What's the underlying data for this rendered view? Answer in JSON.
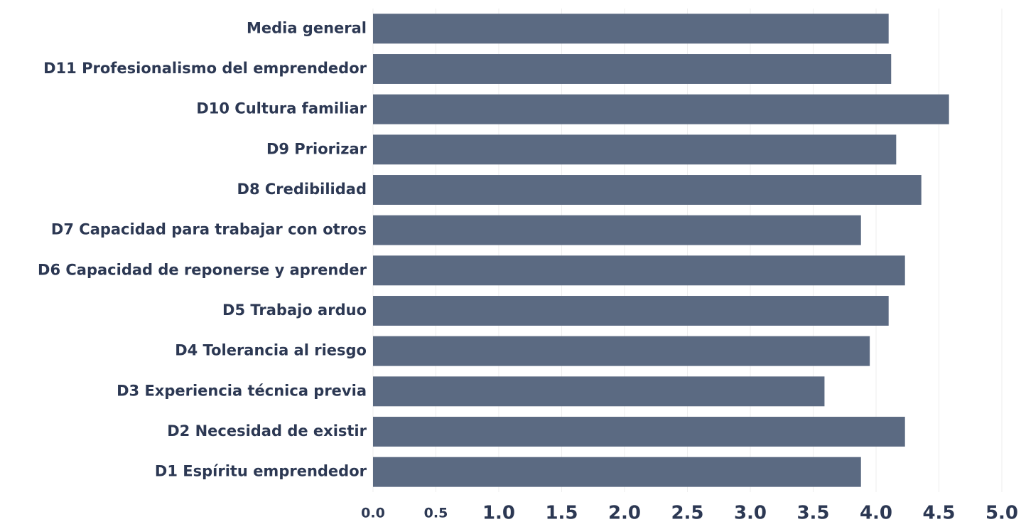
{
  "chart_data": {
    "type": "bar",
    "orientation": "horizontal",
    "categories": [
      "Media general",
      "D11 Profesionalismo del emprendedor",
      "D10 Cultura familiar",
      "D9 Priorizar",
      "D8 Credibilidad",
      "D7 Capacidad para trabajar con otros",
      "D6 Capacidad de reponerse y aprender",
      "D5 Trabajo arduo",
      "D4 Tolerancia al riesgo",
      "D3 Experiencia técnica previa",
      "D2 Necesidad de existir",
      "D1 Espíritu emprendedor"
    ],
    "values": [
      4.1,
      4.12,
      4.58,
      4.16,
      4.36,
      3.88,
      4.23,
      4.1,
      3.95,
      3.59,
      4.23,
      3.88
    ],
    "color": "#5b6a82",
    "xlim": [
      0,
      5
    ],
    "xticks": [
      {
        "value": 0,
        "label": "0.0"
      },
      0.5,
      {
        "value": 1,
        "label": "1.0"
      },
      1.5,
      {
        "value": 2,
        "label": "2.0"
      },
      2.5,
      {
        "value": 3,
        "label": "3.0"
      },
      3.5,
      {
        "value": 4,
        "label": "4.0"
      },
      4.5,
      {
        "value": 5,
        "label": "5.0"
      }
    ],
    "grid": true
  }
}
